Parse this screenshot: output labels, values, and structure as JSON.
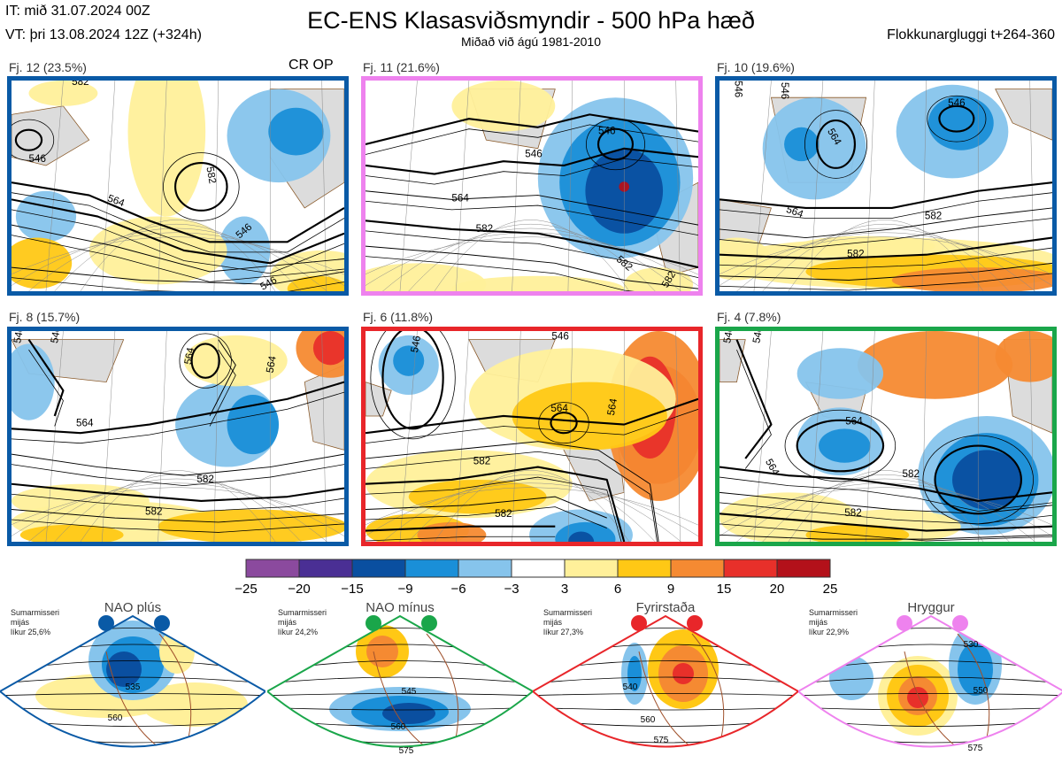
{
  "header": {
    "init": "IT: mið 31.07.2024 00Z",
    "valid": "VT: þri 13.08.2024 12Z  (+324h)",
    "title": "EC-ENS Klasasviðsmyndir - 500 hPa hæð",
    "subtitle": "Miðað við ágú 1981-2010",
    "window": "Flokkunargluggi t+264-360"
  },
  "chart_data": {
    "type": "heatmap",
    "panels": [
      {
        "label": "Fj. 12 (23.5%)",
        "regime_color": "#0a5aa6",
        "contour_labels": [
          "546",
          "564",
          "582",
          "546",
          "546",
          "582"
        ]
      },
      {
        "label": "Fj. 11 (21.6%)",
        "regime_color": "#ee82ee",
        "contour_labels": [
          "546",
          "546",
          "564",
          "582",
          "582",
          "582"
        ]
      },
      {
        "label": "Fj. 10 (19.6%)",
        "regime_color": "#0a5aa6",
        "contour_labels": [
          "546",
          "546",
          "546",
          "564",
          "564",
          "582",
          "582"
        ]
      },
      {
        "label": "Fj. 8 (15.7%)",
        "regime_color": "#0a5aa6",
        "contour_labels": [
          "546",
          "546",
          "564",
          "564",
          "564",
          "582",
          "582"
        ]
      },
      {
        "label": "Fj. 6 (11.8%)",
        "regime_color": "#e8262a",
        "contour_labels": [
          "546",
          "546",
          "564",
          "564",
          "582",
          "582"
        ]
      },
      {
        "label": "Fj. 4 (7.8%)",
        "regime_color": "#1aa64a",
        "contour_labels": [
          "546",
          "546",
          "564",
          "564",
          "582",
          "582"
        ]
      }
    ],
    "op_marker": "CR OP",
    "colorbar": {
      "ticks": [
        "−25",
        "−20",
        "−15",
        "−9",
        "−6",
        "−3",
        "3",
        "6",
        "9",
        "15",
        "20",
        "25"
      ],
      "colors": [
        "#8b4a9e",
        "#4a2f94",
        "#0a4fa0",
        "#1a8fd8",
        "#86c4ec",
        "#ffffff",
        "#fff09a",
        "#ffc815",
        "#f58a32",
        "#e8302a",
        "#b3111a"
      ]
    },
    "regimes": [
      {
        "name": "NAO plús",
        "season": "Sumarmisseri",
        "mean": "mijás",
        "likelihood": "líkur 25,6%",
        "color": "#0a5aa6",
        "contour_labels": [
          "535",
          "560"
        ]
      },
      {
        "name": "NAO mínus",
        "season": "Sumarmisseri",
        "mean": "mijás",
        "likelihood": "líkur 24,2%",
        "color": "#1aa64a",
        "contour_labels": [
          "545",
          "560",
          "575"
        ]
      },
      {
        "name": "Fyrirstaða",
        "season": "Sumarmisseri",
        "mean": "mijás",
        "likelihood": "líkur 27,3%",
        "color": "#e8262a",
        "contour_labels": [
          "540",
          "560",
          "575"
        ]
      },
      {
        "name": "Hryggur",
        "season": "Sumarmisseri",
        "mean": "mijás",
        "likelihood": "líkur 22,9%",
        "color": "#ee82ee",
        "contour_labels": [
          "530",
          "550",
          "575"
        ]
      }
    ]
  }
}
